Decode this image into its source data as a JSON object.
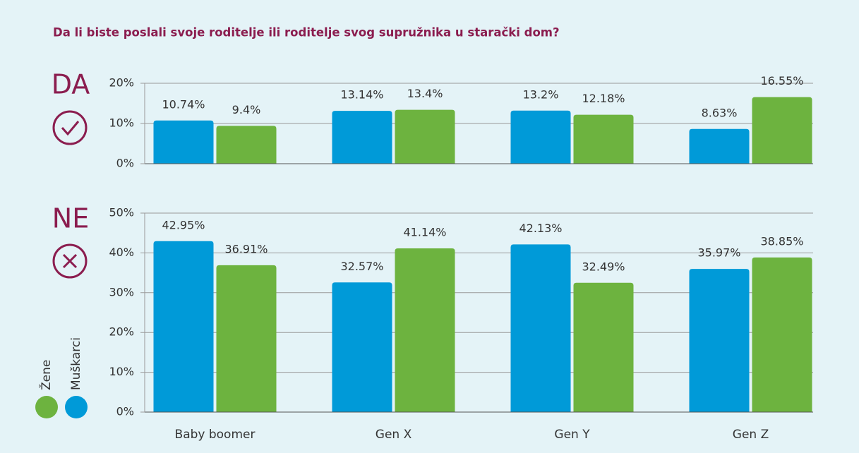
{
  "chart_data": [
    {
      "type": "bar",
      "title": "Da li biste poslali svoje roditelje ili roditelje svog supružnika u starački dom?",
      "label": "DA",
      "ylim": [
        0,
        20
      ],
      "yticks": [
        {
          "value": 0,
          "label": "0%"
        },
        {
          "value": 10,
          "label": "10%"
        },
        {
          "value": 20,
          "label": "20%"
        }
      ],
      "grid": true,
      "series": [
        {
          "color": "#009ad8",
          "values": [
            10.74,
            13.14,
            13.2,
            8.63
          ],
          "value_labels": [
            "10.74%",
            "13.14%",
            "13.2%",
            "8.63%"
          ]
        },
        {
          "color": "#6db33f",
          "values": [
            9.4,
            13.4,
            12.18,
            16.55
          ],
          "value_labels": [
            "9.4%",
            "13.4%",
            "12.18%",
            "16.55%"
          ]
        }
      ]
    },
    {
      "type": "bar",
      "label": "NE",
      "categories": [
        "Baby boomer",
        "Gen X",
        "Gen Y",
        "Gen Z"
      ],
      "ylim": [
        0,
        50
      ],
      "yticks": [
        {
          "value": 0,
          "label": "0%"
        },
        {
          "value": 10,
          "label": "10%"
        },
        {
          "value": 20,
          "label": "20%"
        },
        {
          "value": 30,
          "label": "30%"
        },
        {
          "value": 40,
          "label": "40%"
        },
        {
          "value": 50,
          "label": "50%"
        }
      ],
      "grid": true,
      "series": [
        {
          "name": "Muškarci",
          "color": "#009ad8",
          "values": [
            42.95,
            32.57,
            42.13,
            35.97
          ],
          "value_labels": [
            "42.95%",
            "32.57%",
            "42.13%",
            "35.97%"
          ]
        },
        {
          "name": "Žene",
          "color": "#6db33f",
          "values": [
            36.91,
            41.14,
            32.49,
            38.85
          ],
          "value_labels": [
            "36.91%",
            "41.14%",
            "32.49%",
            "38.85%"
          ]
        }
      ]
    }
  ]
}
